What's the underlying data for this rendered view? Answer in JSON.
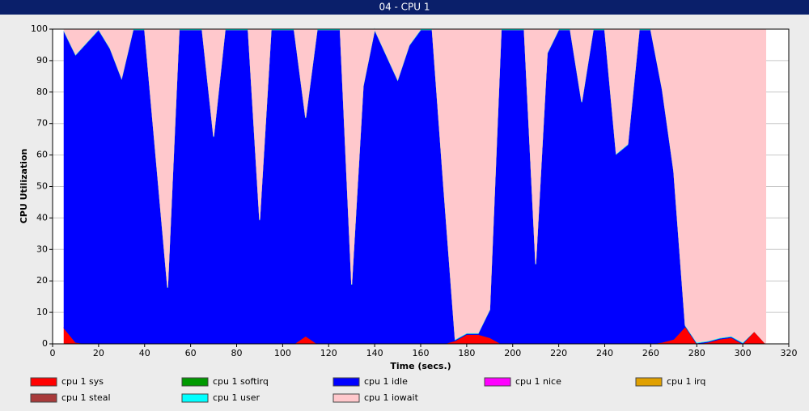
{
  "chart_data": {
    "type": "stacked-area",
    "title": "04 - CPU 1",
    "x_label": "Time (secs.)",
    "y_label": "CPU Utilization",
    "x": [
      5,
      10,
      15,
      20,
      25,
      30,
      35,
      40,
      45,
      50,
      55,
      60,
      65,
      70,
      75,
      80,
      85,
      90,
      95,
      100,
      105,
      110,
      115,
      120,
      125,
      130,
      135,
      140,
      145,
      150,
      155,
      160,
      165,
      170,
      175,
      180,
      185,
      190,
      195,
      200,
      205,
      210,
      215,
      220,
      225,
      230,
      235,
      240,
      245,
      250,
      255,
      260,
      265,
      270,
      275,
      280,
      285,
      290,
      295,
      300,
      305,
      310
    ],
    "xlim": [
      0,
      320
    ],
    "xticks": [
      0,
      20,
      40,
      60,
      80,
      100,
      120,
      140,
      160,
      180,
      200,
      220,
      240,
      260,
      280,
      300,
      320
    ],
    "ylim": [
      0,
      100
    ],
    "yticks": [
      0,
      10,
      20,
      30,
      40,
      50,
      60,
      70,
      80,
      90,
      100
    ],
    "grid": true,
    "series": [
      {
        "name": "cpu 1 sys",
        "color": "#ff0000",
        "values": [
          5,
          0.5,
          0,
          0,
          0,
          0,
          0,
          0,
          0,
          0,
          0,
          0,
          0,
          0,
          0,
          0,
          0,
          0,
          0,
          0,
          0,
          2.5,
          0,
          0,
          0,
          0,
          0,
          0,
          0,
          0,
          0,
          0,
          0,
          0,
          1,
          3,
          3,
          2,
          0,
          0,
          0,
          0,
          0,
          0,
          0,
          0,
          0,
          0,
          0,
          0,
          0,
          0,
          0.5,
          1.5,
          5.5,
          0,
          0.5,
          1.5,
          2,
          0,
          4,
          0
        ]
      },
      {
        "name": "cpu 1 softirq",
        "color": "#009900",
        "values": [
          0,
          0,
          0,
          0,
          0,
          0,
          0,
          0,
          0,
          0,
          0,
          0,
          0,
          0,
          0,
          0,
          0,
          0,
          0,
          0,
          0,
          0,
          0,
          0,
          0,
          0,
          0,
          0,
          0,
          0,
          0,
          0,
          0,
          0,
          0,
          0,
          0,
          0,
          0,
          0,
          0,
          0,
          0,
          0,
          0,
          0,
          0,
          0,
          0,
          0,
          0,
          0,
          0,
          0,
          0,
          0,
          0,
          0,
          0,
          0,
          0,
          0
        ]
      },
      {
        "name": "cpu 1 idle",
        "color": "#0000ff",
        "values": [
          94.3,
          91.3,
          95.8,
          99.8,
          93.8,
          84.3,
          99.8,
          99.8,
          58.8,
          17.8,
          99.8,
          99.8,
          99.8,
          65.8,
          99.8,
          99.8,
          99.8,
          39.3,
          99.8,
          99.8,
          99.8,
          69.3,
          99.8,
          99.8,
          99.8,
          18.8,
          81.8,
          99.8,
          91.8,
          83.8,
          94.8,
          99.8,
          99.8,
          49.8,
          0.3,
          0.3,
          0.3,
          8.8,
          99.8,
          99.8,
          99.8,
          25.3,
          92.3,
          99.8,
          99.8,
          76.8,
          99.8,
          99.8,
          60.3,
          63.3,
          99.8,
          99.8,
          80.3,
          53.3,
          0.3,
          0.3,
          0.3,
          0.3,
          0.3,
          0.3,
          0,
          0
        ]
      },
      {
        "name": "cpu 1 nice",
        "color": "#ff00ff",
        "values": [
          0,
          0,
          0,
          0,
          0,
          0,
          0,
          0,
          0,
          0,
          0,
          0,
          0,
          0,
          0,
          0,
          0,
          0,
          0,
          0,
          0,
          0,
          0,
          0,
          0,
          0,
          0,
          0,
          0,
          0,
          0,
          0,
          0,
          0,
          0,
          0,
          0,
          0,
          0,
          0,
          0,
          0,
          0,
          0,
          0,
          0,
          0,
          0,
          0,
          0,
          0,
          0,
          0,
          0,
          0,
          0,
          0,
          0,
          0,
          0,
          0,
          0
        ]
      },
      {
        "name": "cpu 1 irq",
        "color": "#e0a000",
        "values": [
          0,
          0,
          0,
          0,
          0,
          0,
          0,
          0,
          0,
          0,
          0,
          0,
          0,
          0,
          0,
          0,
          0,
          0,
          0,
          0,
          0,
          0,
          0,
          0,
          0,
          0,
          0,
          0,
          0,
          0,
          0,
          0,
          0,
          0,
          0,
          0,
          0,
          0,
          0,
          0,
          0,
          0,
          0,
          0,
          0,
          0,
          0,
          0,
          0,
          0,
          0,
          0,
          0,
          0,
          0,
          0,
          0,
          0,
          0,
          0,
          0,
          0
        ]
      },
      {
        "name": "cpu 1 steal",
        "color": "#a83a3a",
        "values": [
          0,
          0,
          0,
          0,
          0,
          0,
          0,
          0,
          0,
          0,
          0,
          0,
          0,
          0,
          0,
          0,
          0,
          0,
          0,
          0,
          0,
          0,
          0,
          0,
          0,
          0,
          0,
          0,
          0,
          0,
          0,
          0,
          0,
          0,
          0,
          0,
          0,
          0,
          0,
          0,
          0,
          0,
          0,
          0,
          0,
          0,
          0,
          0,
          0,
          0,
          0,
          0,
          0,
          0,
          0,
          0,
          0,
          0,
          0,
          0,
          0,
          0
        ]
      },
      {
        "name": "cpu 1 user",
        "color": "#00ffff",
        "values": [
          0.2,
          0.2,
          0.2,
          0.2,
          0.2,
          0.2,
          0.2,
          0.2,
          0.2,
          0.2,
          0.2,
          0.2,
          0.2,
          0.2,
          0.2,
          0.2,
          0.2,
          0.2,
          0.2,
          0.2,
          0.2,
          0.2,
          0.2,
          0.2,
          0.2,
          0.2,
          0.2,
          0.2,
          0.2,
          0.2,
          0.2,
          0.2,
          0.2,
          0.2,
          0.2,
          0.2,
          0.2,
          0.2,
          0.2,
          0.2,
          0.2,
          0.2,
          0.2,
          0.2,
          0.2,
          0.2,
          0.2,
          0.2,
          0.2,
          0.2,
          0.2,
          0.2,
          0.2,
          0.2,
          0.2,
          0.2,
          0.2,
          0.2,
          0.2,
          0.2,
          0,
          0
        ]
      },
      {
        "name": "cpu 1 iowait",
        "color": "#ffc8cc",
        "values": [
          0.5,
          8,
          4,
          0,
          6,
          15.5,
          0,
          0,
          41,
          82,
          0,
          0,
          0,
          34,
          0,
          0,
          0,
          60.5,
          0,
          0,
          0,
          28,
          0,
          0,
          0,
          81,
          18,
          0,
          8,
          16,
          5,
          0,
          0,
          50,
          98.5,
          96.5,
          96.5,
          89,
          0,
          0,
          0,
          74.5,
          7.5,
          0,
          0,
          23,
          0,
          0,
          39.5,
          36.5,
          0,
          0,
          19,
          45,
          94,
          99.5,
          99,
          98,
          97.5,
          99.5,
          96,
          100
        ]
      }
    ]
  }
}
